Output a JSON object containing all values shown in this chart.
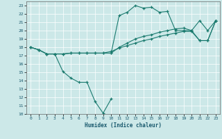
{
  "title": "",
  "xlabel": "Humidex (Indice chaleur)",
  "bg_color": "#cce8e8",
  "line_color": "#1a7a6e",
  "xlim": [
    -0.5,
    23.5
  ],
  "ylim": [
    10,
    23.5
  ],
  "xticks": [
    0,
    1,
    2,
    3,
    4,
    5,
    6,
    7,
    8,
    9,
    10,
    11,
    12,
    13,
    14,
    15,
    16,
    17,
    18,
    19,
    20,
    21,
    22,
    23
  ],
  "yticks": [
    10,
    11,
    12,
    13,
    14,
    15,
    16,
    17,
    18,
    19,
    20,
    21,
    22,
    23
  ],
  "lines": [
    {
      "x": [
        0,
        1,
        2,
        3,
        4,
        5,
        6,
        7,
        8,
        9,
        10,
        11,
        12,
        13,
        14,
        15,
        16,
        17,
        18,
        19,
        20,
        21,
        22,
        23
      ],
      "y": [
        18,
        17.7,
        17.2,
        17.2,
        17.2,
        17.3,
        17.3,
        17.3,
        17.3,
        17.3,
        17.3,
        21.8,
        22.2,
        23.0,
        22.7,
        22.8,
        22.2,
        22.3,
        20.0,
        20.0,
        20.0,
        21.2,
        20.0,
        21.2
      ]
    },
    {
      "x": [
        0,
        1,
        2,
        3,
        4,
        5,
        6,
        7,
        8,
        9,
        10
      ],
      "y": [
        18,
        17.7,
        17.2,
        17.2,
        15.1,
        14.3,
        13.8,
        13.8,
        11.5,
        10.1,
        11.8
      ]
    },
    {
      "x": [
        10,
        11,
        12,
        13,
        14,
        15,
        16,
        17,
        18,
        19,
        20,
        21,
        22,
        23
      ],
      "y": [
        17.3,
        18.0,
        18.5,
        19.0,
        19.3,
        19.5,
        19.8,
        20.0,
        20.2,
        20.3,
        20.0,
        18.8,
        18.8,
        21.2
      ]
    },
    {
      "x": [
        0,
        1,
        2,
        3,
        4,
        5,
        6,
        7,
        8,
        9,
        10,
        11,
        12,
        13,
        14,
        15,
        16,
        17,
        18,
        19,
        20,
        21,
        22,
        23
      ],
      "y": [
        18,
        17.7,
        17.2,
        17.2,
        17.2,
        17.3,
        17.3,
        17.3,
        17.3,
        17.3,
        17.5,
        17.9,
        18.2,
        18.5,
        18.8,
        19.0,
        19.3,
        19.5,
        19.7,
        19.9,
        19.9,
        18.8,
        18.8,
        21.2
      ]
    }
  ]
}
